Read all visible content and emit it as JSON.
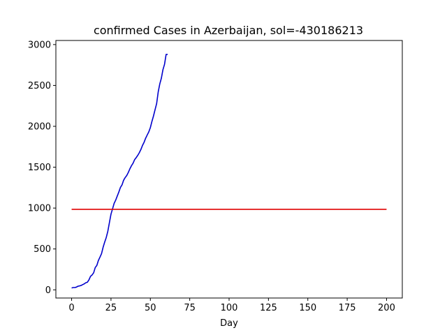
{
  "chart_data": {
    "type": "line",
    "title": "confirmed Cases in Azerbaijan, sol=-430186213",
    "xlabel": "Day",
    "ylabel": "",
    "xlim": [
      -10,
      210
    ],
    "ylim": [
      -100,
      3050
    ],
    "xticks": [
      0,
      25,
      50,
      75,
      100,
      125,
      150,
      175,
      200
    ],
    "yticks": [
      0,
      500,
      1000,
      1500,
      2000,
      2500,
      3000
    ],
    "grid": false,
    "series": [
      {
        "color": "#0000cc",
        "x": [
          0,
          1,
          2,
          3,
          4,
          5,
          6,
          7,
          8,
          9,
          10,
          11,
          12,
          13,
          14,
          15,
          16,
          17,
          18,
          19,
          20,
          21,
          22,
          23,
          24,
          25,
          26,
          27,
          28,
          29,
          30,
          31,
          32,
          33,
          34,
          35,
          36,
          37,
          38,
          39,
          40,
          41,
          42,
          43,
          44,
          45,
          46,
          47,
          48,
          49,
          50,
          51,
          52,
          53,
          54,
          55,
          56,
          57,
          58,
          59,
          60,
          61
        ],
        "y": [
          23,
          28,
          28,
          33,
          44,
          48,
          53,
          64,
          73,
          87,
          93,
          122,
          165,
          182,
          209,
          273,
          298,
          359,
          400,
          443,
          521,
          584,
          641,
          717,
          822,
          926,
          991,
          1058,
          1098,
          1148,
          1197,
          1253,
          1283,
          1340,
          1373,
          1398,
          1436,
          1480,
          1518,
          1548,
          1592,
          1617,
          1645,
          1678,
          1717,
          1766,
          1804,
          1854,
          1894,
          1932,
          1984,
          2060,
          2127,
          2204,
          2279,
          2422,
          2519,
          2589,
          2693,
          2758,
          2879,
          2880
        ]
      },
      {
        "color": "#e00000",
        "x": [
          0,
          200
        ],
        "y": [
          985,
          985
        ]
      }
    ]
  }
}
